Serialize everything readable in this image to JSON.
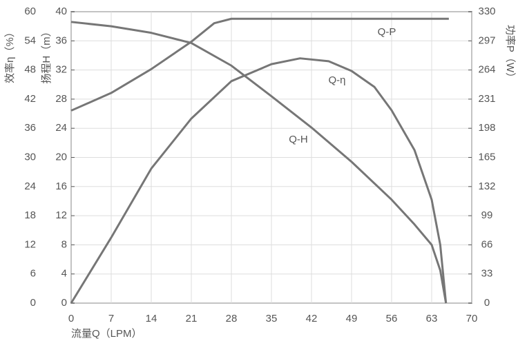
{
  "chart_data": {
    "type": "line",
    "x_label": "流量Q（LPM）",
    "y_label": "效率η（%）",
    "y2_label": "功率P（W）",
    "y3_label": "扬程H（m）",
    "xlim": [
      0,
      70
    ],
    "xticks": [
      0,
      7,
      14,
      21,
      28,
      35,
      42,
      49,
      56,
      63,
      70
    ],
    "ylim": [
      0,
      60
    ],
    "yticks": [
      0,
      6,
      12,
      18,
      24,
      30,
      36,
      42,
      48,
      54,
      60
    ],
    "y2lim": [
      0,
      330
    ],
    "y2ticks": [
      0,
      33,
      66,
      99,
      132,
      165,
      198,
      231,
      264,
      297,
      330
    ],
    "y3lim": [
      0,
      40
    ],
    "y3ticks": [
      0,
      4,
      8,
      12,
      16,
      20,
      24,
      28,
      32,
      36,
      40
    ],
    "grid": true,
    "series": [
      {
        "name": "Q-H",
        "color": "#767676",
        "axis": "y3",
        "x": [
          0,
          7,
          14,
          21,
          28,
          35,
          42,
          49,
          56,
          60,
          63,
          64.5,
          65.5
        ],
        "values": [
          38.6,
          38.0,
          37.1,
          35.7,
          32.6,
          28.4,
          24.1,
          19.4,
          14.2,
          10.8,
          8.0,
          4.5,
          0
        ]
      },
      {
        "name": "Q-η",
        "color": "#767676",
        "axis": "y",
        "x": [
          0,
          7,
          14,
          21,
          28,
          35,
          40,
          45,
          49,
          53,
          56,
          60,
          63,
          64.5,
          65.5
        ],
        "values": [
          0,
          13.5,
          27.7,
          38,
          45.7,
          49.2,
          50.4,
          49.8,
          47.8,
          44.5,
          39.7,
          31.5,
          21.3,
          12,
          0
        ]
      },
      {
        "name": "Q-P",
        "color": "#767676",
        "axis": "y2",
        "x": [
          0,
          7,
          14,
          21,
          25,
          28,
          35,
          42,
          49,
          56,
          63,
          66
        ],
        "values": [
          218,
          238,
          265,
          296,
          317,
          322,
          322,
          322,
          322,
          322,
          322,
          322
        ]
      }
    ]
  }
}
